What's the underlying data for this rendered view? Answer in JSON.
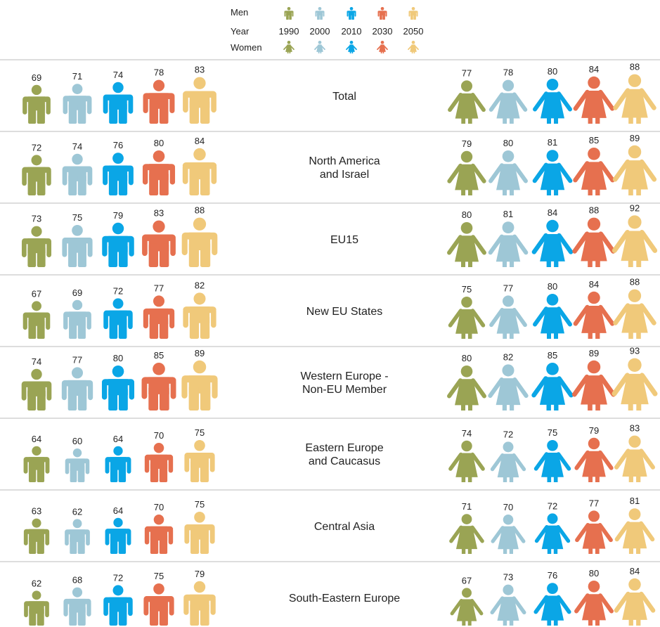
{
  "chart_data": {
    "type": "pictogram",
    "legend": {
      "men": "Men",
      "year": "Year",
      "women": "Women"
    },
    "years": [
      "1990",
      "2000",
      "2010",
      "2030",
      "2050"
    ],
    "colors": [
      "#9aa454",
      "#9ec7d6",
      "#0aa6e6",
      "#e6704f",
      "#f0c97a"
    ],
    "categories": [
      "Total",
      "North America\nand Israel",
      "EU15",
      "New EU States",
      "Western Europe -\nNon-EU Member",
      "Eastern Europe\nand Caucasus",
      "Central Asia",
      "South-Eastern Europe"
    ],
    "men": [
      [
        69,
        71,
        74,
        78,
        83
      ],
      [
        72,
        74,
        76,
        80,
        84
      ],
      [
        73,
        75,
        79,
        83,
        88
      ],
      [
        67,
        69,
        72,
        77,
        82
      ],
      [
        74,
        77,
        80,
        85,
        89
      ],
      [
        64,
        60,
        64,
        70,
        75
      ],
      [
        63,
        62,
        64,
        70,
        75
      ],
      [
        62,
        68,
        72,
        75,
        79
      ]
    ],
    "women": [
      [
        77,
        78,
        80,
        84,
        88
      ],
      [
        79,
        80,
        81,
        85,
        89
      ],
      [
        80,
        81,
        84,
        88,
        92
      ],
      [
        75,
        77,
        80,
        84,
        88
      ],
      [
        80,
        82,
        85,
        89,
        93
      ],
      [
        74,
        72,
        75,
        79,
        83
      ],
      [
        71,
        70,
        72,
        77,
        81
      ],
      [
        67,
        73,
        76,
        80,
        84
      ]
    ]
  }
}
